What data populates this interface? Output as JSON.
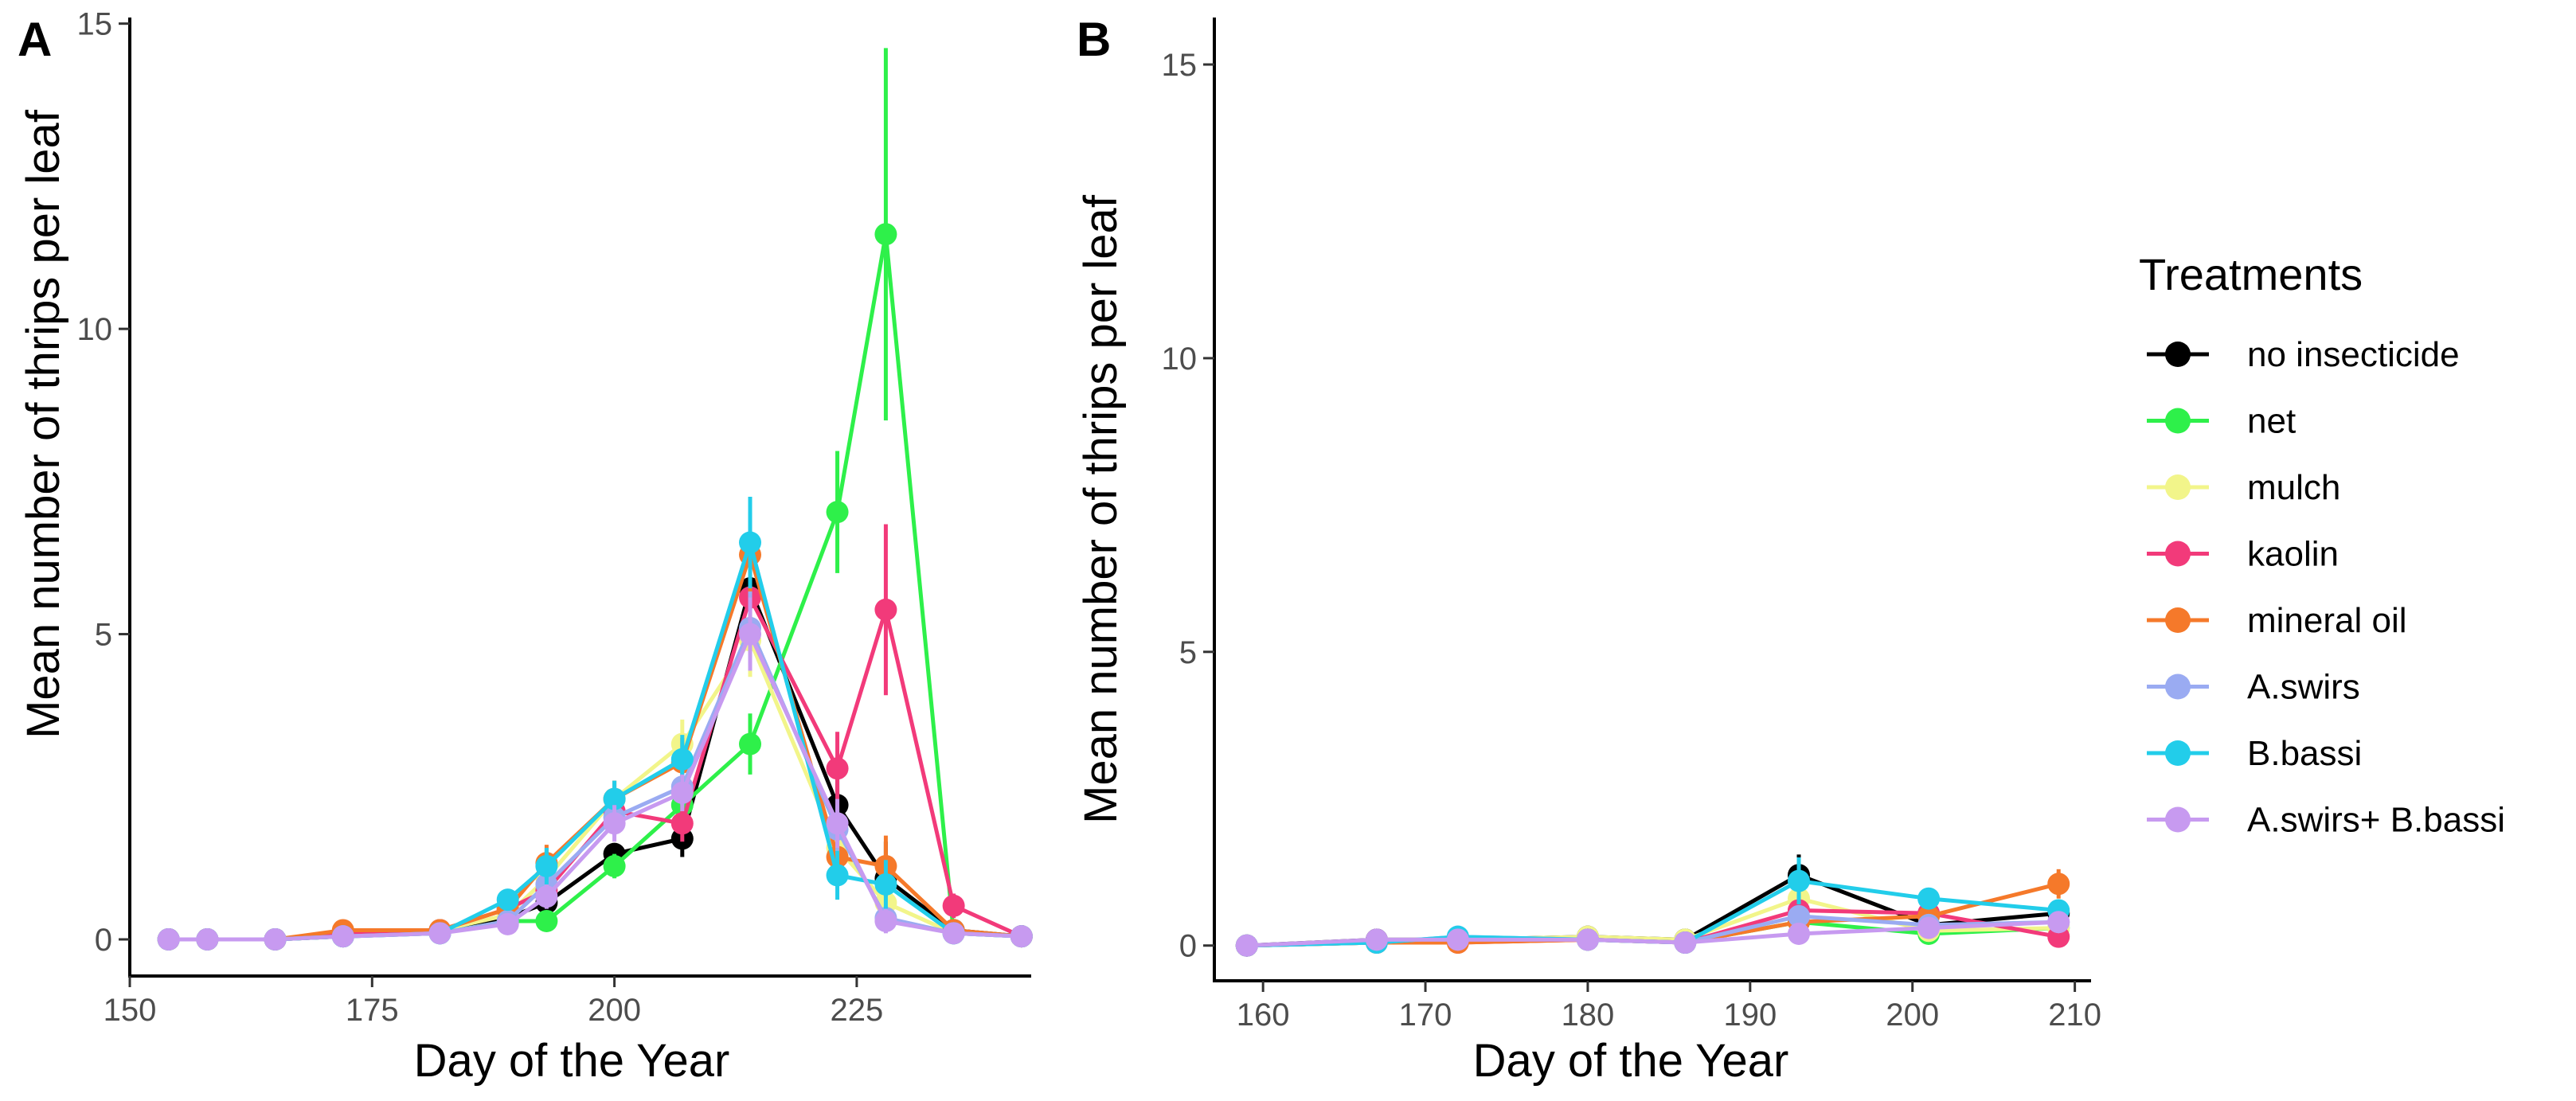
{
  "legend": {
    "title": "Treatments",
    "items": [
      {
        "label": "no insecticide",
        "color": "#000000"
      },
      {
        "label": "net",
        "color": "#2EF04A"
      },
      {
        "label": "mulch",
        "color": "#F2F58A"
      },
      {
        "label": "kaolin",
        "color": "#F23A7A"
      },
      {
        "label": "mineral oil",
        "color": "#F5792A"
      },
      {
        "label": "A.swirs",
        "color": "#9AABF2"
      },
      {
        "label": "B.bassi",
        "color": "#22CDEA"
      },
      {
        "label": "A.swirs+ B.bassi",
        "color": "#C79AF0"
      }
    ]
  },
  "chart_data": [
    {
      "panel": "A",
      "type": "line",
      "xlabel": "Day of the Year",
      "ylabel": "Mean number of thrips per leaf",
      "xlim": [
        150,
        243
      ],
      "ylim": [
        -0.6,
        15.1
      ],
      "xticks": [
        150,
        175,
        200,
        225
      ],
      "yticks": [
        0,
        5,
        10,
        15
      ],
      "x": [
        154,
        158,
        165,
        172,
        182,
        189,
        193,
        200,
        207,
        214,
        223,
        228,
        235,
        242
      ],
      "series": [
        {
          "name": "no insecticide",
          "values": [
            0,
            0,
            0,
            0.05,
            0.15,
            0.35,
            0.6,
            1.4,
            1.65,
            5.75,
            2.2,
            1.0,
            0.15,
            0.05
          ],
          "errors": [
            0.05,
            0.05,
            0.05,
            0.05,
            0.1,
            0.1,
            0.2,
            0.15,
            0.3,
            0.8,
            0.5,
            0.6,
            0.1,
            0.05
          ]
        },
        {
          "name": "net",
          "values": [
            0,
            0,
            0,
            0.05,
            0.1,
            0.3,
            0.3,
            1.2,
            2.2,
            3.2,
            7.0,
            11.55,
            0.1,
            0.05
          ],
          "errors": [
            0.05,
            0.05,
            0.05,
            0.05,
            0.1,
            0.1,
            0.1,
            0.2,
            0.3,
            0.5,
            1.0,
            3.05,
            0.1,
            0.05
          ]
        },
        {
          "name": "mulch",
          "values": [
            0,
            0,
            0,
            0.1,
            0.15,
            0.4,
            1.0,
            2.3,
            3.2,
            4.9,
            1.5,
            0.6,
            0.1,
            0.05
          ],
          "errors": [
            0.05,
            0.05,
            0.05,
            0.05,
            0.1,
            0.1,
            0.3,
            0.3,
            0.4,
            0.6,
            0.3,
            0.3,
            0.1,
            0.05
          ]
        },
        {
          "name": "kaolin",
          "values": [
            0,
            0,
            0,
            0.1,
            0.15,
            0.5,
            0.8,
            2.1,
            1.9,
            5.6,
            2.8,
            5.4,
            0.55,
            0.05
          ],
          "errors": [
            0.05,
            0.05,
            0.05,
            0.05,
            0.1,
            0.1,
            0.2,
            0.3,
            0.3,
            0.8,
            0.6,
            1.4,
            0.2,
            0.05
          ]
        },
        {
          "name": "mineral oil",
          "values": [
            0,
            0,
            0,
            0.15,
            0.15,
            0.5,
            1.25,
            2.3,
            2.9,
            6.3,
            1.35,
            1.2,
            0.15,
            0.05
          ],
          "errors": [
            0.05,
            0.05,
            0.05,
            0.05,
            0.1,
            0.15,
            0.3,
            0.3,
            0.4,
            0.7,
            0.4,
            0.5,
            0.1,
            0.05
          ]
        },
        {
          "name": "A.swirs",
          "values": [
            0,
            0,
            0,
            0.05,
            0.1,
            0.3,
            0.9,
            2.0,
            2.5,
            5.1,
            1.8,
            0.35,
            0.1,
            0.05
          ],
          "errors": [
            0.05,
            0.05,
            0.05,
            0.05,
            0.1,
            0.1,
            0.2,
            0.3,
            0.3,
            0.6,
            0.4,
            0.2,
            0.1,
            0.05
          ]
        },
        {
          "name": "B.bassi",
          "values": [
            0,
            0,
            0,
            0.05,
            0.1,
            0.65,
            1.2,
            2.3,
            2.95,
            6.5,
            1.05,
            0.9,
            0.1,
            0.05
          ],
          "errors": [
            0.05,
            0.05,
            0.05,
            0.05,
            0.1,
            0.15,
            0.3,
            0.3,
            0.4,
            0.75,
            0.4,
            0.4,
            0.1,
            0.05
          ]
        },
        {
          "name": "A.swirs+ B.bassi",
          "values": [
            0,
            0,
            0,
            0.05,
            0.1,
            0.25,
            0.7,
            1.9,
            2.4,
            5.0,
            1.9,
            0.3,
            0.1,
            0.05
          ],
          "errors": [
            0.05,
            0.05,
            0.05,
            0.05,
            0.1,
            0.1,
            0.2,
            0.3,
            0.3,
            0.6,
            0.4,
            0.2,
            0.1,
            0.05
          ]
        }
      ]
    },
    {
      "panel": "B",
      "type": "line",
      "xlabel": "Day of the Year",
      "ylabel": "Mean number of thrips per leaf",
      "xlim": [
        157,
        211
      ],
      "ylim": [
        -0.6,
        15.8
      ],
      "xticks": [
        160,
        170,
        180,
        190,
        200,
        210
      ],
      "yticks": [
        0,
        5,
        10,
        15
      ],
      "x": [
        159,
        167,
        172,
        180,
        186,
        193,
        201,
        209
      ],
      "series": [
        {
          "name": "no insecticide",
          "values": [
            0,
            0.1,
            0.1,
            0.15,
            0.1,
            1.2,
            0.35,
            0.55
          ],
          "errors": [
            0.05,
            0.05,
            0.05,
            0.05,
            0.05,
            0.35,
            0.15,
            0.15
          ]
        },
        {
          "name": "net",
          "values": [
            0,
            0.05,
            0.1,
            0.1,
            0.05,
            0.4,
            0.2,
            0.3
          ],
          "errors": [
            0.05,
            0.05,
            0.05,
            0.05,
            0.05,
            0.15,
            0.1,
            0.1
          ]
        },
        {
          "name": "mulch",
          "values": [
            0,
            0.05,
            0.1,
            0.15,
            0.1,
            0.8,
            0.25,
            0.3
          ],
          "errors": [
            0.05,
            0.05,
            0.05,
            0.05,
            0.05,
            0.2,
            0.1,
            0.1
          ]
        },
        {
          "name": "kaolin",
          "values": [
            0,
            0.05,
            0.05,
            0.1,
            0.05,
            0.6,
            0.55,
            0.15
          ],
          "errors": [
            0.05,
            0.05,
            0.05,
            0.05,
            0.05,
            0.2,
            0.15,
            0.1
          ]
        },
        {
          "name": "mineral oil",
          "values": [
            0,
            0.05,
            0.05,
            0.1,
            0.05,
            0.4,
            0.5,
            1.05
          ],
          "errors": [
            0.05,
            0.05,
            0.05,
            0.05,
            0.05,
            0.15,
            0.15,
            0.25
          ]
        },
        {
          "name": "A.swirs",
          "values": [
            0,
            0.05,
            0.15,
            0.1,
            0.05,
            0.5,
            0.35,
            0.4
          ],
          "errors": [
            0.05,
            0.05,
            0.05,
            0.05,
            0.05,
            0.15,
            0.1,
            0.1
          ]
        },
        {
          "name": "B.bassi",
          "values": [
            0,
            0.05,
            0.15,
            0.1,
            0.05,
            1.1,
            0.8,
            0.6
          ],
          "errors": [
            0.05,
            0.05,
            0.05,
            0.05,
            0.05,
            0.4,
            0.15,
            0.15
          ]
        },
        {
          "name": "A.swirs+ B.bassi",
          "values": [
            0,
            0.1,
            0.1,
            0.1,
            0.05,
            0.2,
            0.3,
            0.4
          ],
          "errors": [
            0.05,
            0.05,
            0.05,
            0.05,
            0.05,
            0.1,
            0.1,
            0.1
          ]
        }
      ]
    }
  ]
}
